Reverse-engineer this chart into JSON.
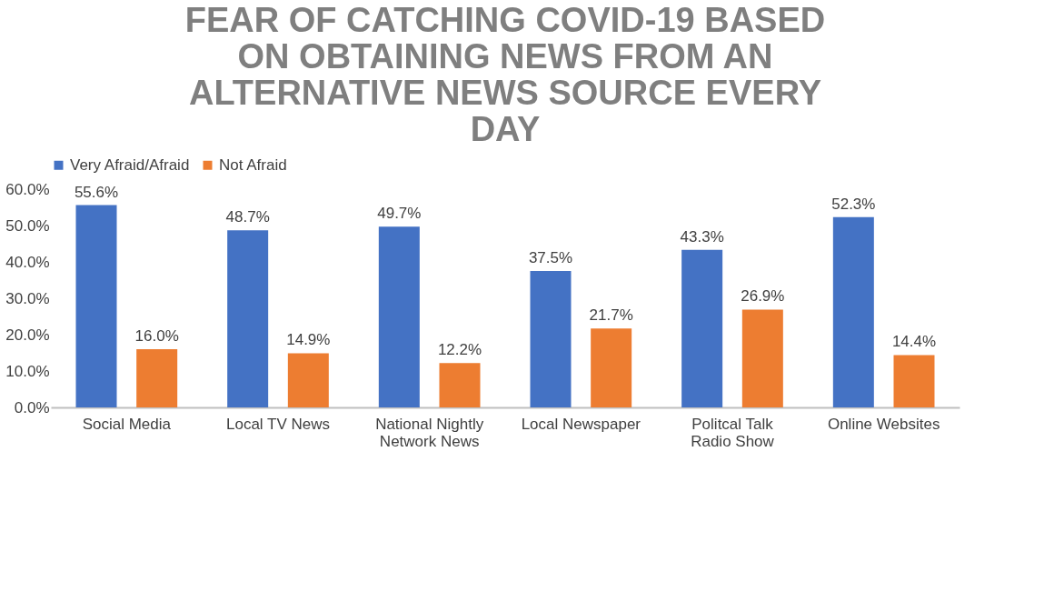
{
  "chart_data": {
    "type": "bar",
    "title": "FEAR OF CATCHING COVID-19 BASED ON OBTAINING NEWS FROM AN ALTERNATIVE NEWS SOURCE EVERY DAY",
    "categories": [
      "Social Media",
      "Local TV News",
      "National Nightly Network News",
      "Local Newspaper",
      "Politcal Talk Radio Show",
      "Online Websites"
    ],
    "series": [
      {
        "name": "Very Afraid/Afraid",
        "color": "#4472c4",
        "values": [
          55.6,
          48.7,
          49.7,
          37.5,
          43.3,
          52.3
        ],
        "value_labels": [
          "55.6%",
          "48.7%",
          "49.7%",
          "37.5%",
          "43.3%",
          "52.3%"
        ]
      },
      {
        "name": "Not Afraid",
        "color": "#ed7d31",
        "values": [
          16.0,
          14.9,
          12.2,
          21.7,
          26.9,
          14.4
        ],
        "value_labels": [
          "16.0%",
          "14.9%",
          "12.2%",
          "21.7%",
          "26.9%",
          "14.4%"
        ]
      }
    ],
    "ylim": [
      0,
      60
    ],
    "yticks": [
      {
        "value": 0,
        "label": "0.0%"
      },
      {
        "value": 10,
        "label": "10.0%"
      },
      {
        "value": 20,
        "label": "20.0%"
      },
      {
        "value": 30,
        "label": "30.0%"
      },
      {
        "value": 40,
        "label": "40.0%"
      },
      {
        "value": 50,
        "label": "50.0%"
      },
      {
        "value": 60,
        "label": "60.0%"
      }
    ],
    "grid": false,
    "legend": "top"
  }
}
